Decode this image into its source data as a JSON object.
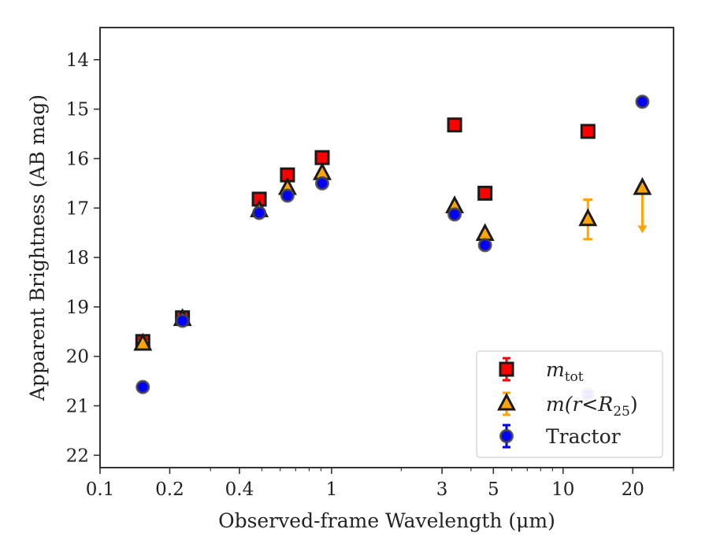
{
  "chart_data": {
    "type": "scatter",
    "xlabel": "Observed-frame Wavelength (μm)",
    "ylabel": "Apparent Brightness (AB mag)",
    "xscale": "log",
    "y_inverted": true,
    "xlim": [
      0.1,
      30
    ],
    "ylim": [
      22.25,
      13.35
    ],
    "x_ticks": [
      0.1,
      0.2,
      0.4,
      1,
      3,
      5,
      10,
      20
    ],
    "x_tick_labels": [
      "0.1",
      "0.2",
      "0.4",
      "1",
      "3",
      "5",
      "10",
      "20"
    ],
    "y_ticks": [
      14,
      15,
      16,
      17,
      18,
      19,
      20,
      21,
      22
    ],
    "y_tick_labels": [
      "14",
      "15",
      "16",
      "17",
      "18",
      "19",
      "20",
      "21",
      "22"
    ],
    "grid": false,
    "legend_position": "lower-right",
    "series": [
      {
        "name": "m_tot",
        "legend_label": "m",
        "legend_sub": "tot",
        "marker": "square",
        "color": "#ff0000",
        "edge_color": "#1a1a1a",
        "errorbar_color": "#ff0000",
        "points": [
          {
            "x": 0.153,
            "y": 19.7,
            "yerr": 0.05
          },
          {
            "x": 0.227,
            "y": 19.22,
            "yerr": 0.05
          },
          {
            "x": 0.487,
            "y": 16.82,
            "yerr": 0.02
          },
          {
            "x": 0.645,
            "y": 16.33,
            "yerr": 0.02
          },
          {
            "x": 0.911,
            "y": 15.98,
            "yerr": 0.02
          },
          {
            "x": 3.4,
            "y": 15.32,
            "yerr": 0.02
          },
          {
            "x": 4.6,
            "y": 16.7,
            "yerr": 0.02
          },
          {
            "x": 12.8,
            "y": 15.45,
            "yerr": 0.02
          }
        ]
      },
      {
        "name": "m(r<R_25)",
        "legend_label": "m(r<R",
        "legend_sub": "25",
        "legend_suffix": ")",
        "marker": "triangle",
        "color": "#ffa500",
        "edge_color": "#1a1a1a",
        "errorbar_color": "#ffa500",
        "points": [
          {
            "x": 0.153,
            "y": 19.75,
            "yerr": 0.05
          },
          {
            "x": 0.227,
            "y": 19.25,
            "yerr": 0.05
          },
          {
            "x": 0.487,
            "y": 17.05,
            "yerr": 0.02
          },
          {
            "x": 0.645,
            "y": 16.6,
            "yerr": 0.02
          },
          {
            "x": 0.911,
            "y": 16.3,
            "yerr": 0.02
          },
          {
            "x": 3.4,
            "y": 16.97,
            "yerr": 0.02
          },
          {
            "x": 4.6,
            "y": 17.53,
            "yerr": 0.02
          },
          {
            "x": 12.8,
            "y": 17.23,
            "yerr": 0.4
          },
          {
            "x": 22.0,
            "y": 16.6,
            "upper_limit": true,
            "arrow_to": 17.48
          }
        ]
      },
      {
        "name": "Tractor",
        "legend_label": "Tractor",
        "marker": "circle",
        "color": "#0000ff",
        "edge_color": "#444444",
        "errorbar_color": "#0000ff",
        "points": [
          {
            "x": 0.153,
            "y": 20.62,
            "yerr": 0.05
          },
          {
            "x": 0.227,
            "y": 19.28,
            "yerr": 0.05
          },
          {
            "x": 0.487,
            "y": 17.1,
            "yerr": 0.02
          },
          {
            "x": 0.645,
            "y": 16.75,
            "yerr": 0.02
          },
          {
            "x": 0.911,
            "y": 16.5,
            "yerr": 0.02
          },
          {
            "x": 3.4,
            "y": 17.13,
            "yerr": 0.02
          },
          {
            "x": 4.6,
            "y": 17.75,
            "yerr": 0.02
          },
          {
            "x": 12.8,
            "y": 20.77,
            "yerr": 0.05,
            "faded": true
          },
          {
            "x": 22.0,
            "y": 14.85,
            "yerr": 0.05
          }
        ]
      }
    ]
  }
}
